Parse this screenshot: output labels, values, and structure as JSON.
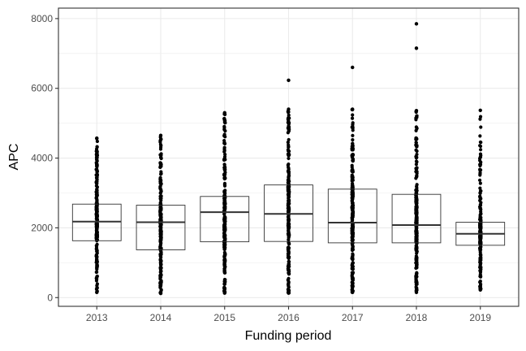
{
  "chart_data": {
    "type": "box",
    "title": "",
    "xlabel": "Funding period",
    "ylabel": "APC",
    "ylim": [
      -250,
      8300
    ],
    "yticks": [
      0,
      2000,
      4000,
      6000,
      8000
    ],
    "ytick_labels": [
      "0",
      "2000",
      "4000",
      "6000",
      "8000"
    ],
    "categories": [
      "2013",
      "2014",
      "2015",
      "2016",
      "2017",
      "2018",
      "2019"
    ],
    "boxes": [
      {
        "category": "2013",
        "q1": 1630,
        "median": 2180,
        "q3": 2680,
        "min": 150,
        "max": 4570,
        "outliers": []
      },
      {
        "category": "2014",
        "q1": 1370,
        "median": 2160,
        "q3": 2650,
        "min": 120,
        "max": 4650,
        "outliers": []
      },
      {
        "category": "2015",
        "q1": 1600,
        "median": 2450,
        "q3": 2900,
        "min": 130,
        "max": 5300,
        "outliers": []
      },
      {
        "category": "2016",
        "q1": 1610,
        "median": 2400,
        "q3": 3230,
        "min": 130,
        "max": 5400,
        "outliers": [
          6230
        ]
      },
      {
        "category": "2017",
        "q1": 1570,
        "median": 2150,
        "q3": 3110,
        "min": 150,
        "max": 5400,
        "outliers": [
          6600
        ]
      },
      {
        "category": "2018",
        "q1": 1570,
        "median": 2080,
        "q3": 2960,
        "min": 150,
        "max": 5360,
        "outliers": [
          7150,
          7850
        ]
      },
      {
        "category": "2019",
        "q1": 1500,
        "median": 1830,
        "q3": 2160,
        "min": 220,
        "max": 5370,
        "outliers": []
      }
    ],
    "grid": true,
    "legend": "none"
  },
  "colors": {
    "background": "#ffffff",
    "grid": "#ebebeb",
    "panel_border": "#333333",
    "box_line": "#333333",
    "points": "#000000"
  }
}
